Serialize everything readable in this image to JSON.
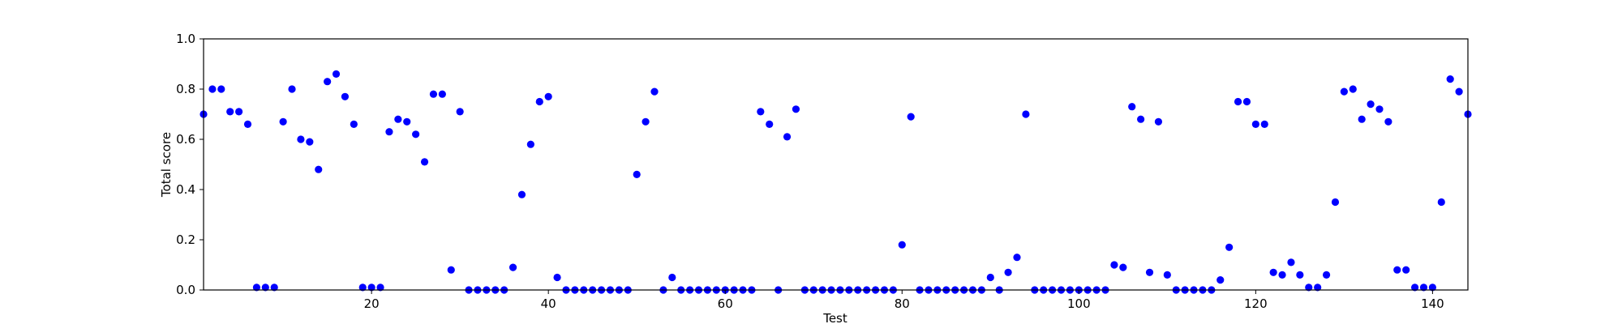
{
  "chart_data": {
    "type": "scatter",
    "title": "",
    "xlabel": "Test",
    "ylabel": "Total score",
    "xlim": [
      1,
      144
    ],
    "ylim": [
      0.0,
      1.0
    ],
    "xticks": [
      20,
      40,
      60,
      80,
      100,
      120,
      140
    ],
    "xtick_labels": [
      "20",
      "40",
      "60",
      "80",
      "100",
      "120",
      "140"
    ],
    "yticks": [
      0.0,
      0.2,
      0.4,
      0.6,
      0.8,
      1.0
    ],
    "ytick_labels": [
      "0.0",
      "0.2",
      "0.4",
      "0.6",
      "0.8",
      "1.0"
    ],
    "grid": false,
    "marker_color": "#0000ff",
    "series": [
      {
        "x": [
          1,
          2,
          3,
          4,
          5,
          6,
          7,
          8,
          9,
          10,
          11,
          12,
          13,
          14,
          15,
          16,
          17,
          18,
          19,
          20,
          21,
          22,
          23,
          24,
          25,
          26,
          27,
          28,
          29,
          30,
          31,
          32,
          33,
          34,
          35,
          36,
          37,
          38,
          39,
          40,
          41,
          42,
          43,
          44,
          45,
          46,
          47,
          48,
          49,
          50,
          51,
          52,
          53,
          54,
          55,
          56,
          57,
          58,
          59,
          60,
          61,
          62,
          63,
          64,
          65,
          66,
          67,
          68,
          69,
          70,
          71,
          72,
          73,
          74,
          75,
          76,
          77,
          78,
          79,
          80,
          81,
          82,
          83,
          84,
          85,
          86,
          87,
          88,
          89,
          90,
          91,
          92,
          93,
          94,
          95,
          96,
          97,
          98,
          99,
          100,
          101,
          102,
          103,
          104,
          105,
          106,
          107,
          108,
          109,
          110,
          111,
          112,
          113,
          114,
          115,
          116,
          117,
          118,
          119,
          120,
          121,
          122,
          123,
          124,
          125,
          126,
          127,
          128,
          129,
          130,
          131,
          132,
          133,
          134,
          135,
          136,
          137,
          138,
          139,
          140,
          141,
          142,
          143,
          144
        ],
        "y": [
          0.7,
          0.8,
          0.8,
          0.71,
          0.71,
          0.66,
          0.01,
          0.01,
          0.01,
          0.67,
          0.8,
          0.6,
          0.59,
          0.48,
          0.83,
          0.86,
          0.77,
          0.66,
          0.01,
          0.01,
          0.01,
          0.63,
          0.68,
          0.67,
          0.62,
          0.51,
          0.78,
          0.78,
          0.08,
          0.71,
          0.0,
          0.0,
          0.0,
          0.0,
          0.0,
          0.09,
          0.38,
          0.58,
          0.75,
          0.77,
          0.05,
          0.0,
          0.0,
          0.0,
          0.0,
          0.0,
          0.0,
          0.0,
          0.0,
          0.46,
          0.67,
          0.79,
          0.0,
          0.05,
          0.0,
          0.0,
          0.0,
          0.0,
          0.0,
          0.0,
          0.0,
          0.0,
          0.0,
          0.71,
          0.66,
          0.0,
          0.61,
          0.72,
          0.0,
          0.0,
          0.0,
          0.0,
          0.0,
          0.0,
          0.0,
          0.0,
          0.0,
          0.0,
          0.0,
          0.18,
          0.69,
          0.0,
          0.0,
          0.0,
          0.0,
          0.0,
          0.0,
          0.0,
          0.0,
          0.05,
          0.0,
          0.07,
          0.13,
          0.7,
          0.0,
          0.0,
          0.0,
          0.0,
          0.0,
          0.0,
          0.0,
          0.0,
          0.0,
          0.1,
          0.09,
          0.73,
          0.68,
          0.07,
          0.67,
          0.06,
          0.0,
          0.0,
          0.0,
          0.0,
          0.0,
          0.04,
          0.17,
          0.75,
          0.75,
          0.66,
          0.66,
          0.07,
          0.06,
          0.11,
          0.06,
          0.01,
          0.01,
          0.06,
          0.35,
          0.79,
          0.8,
          0.68,
          0.74,
          0.72,
          0.67,
          0.08,
          0.08,
          0.01,
          0.01,
          0.01,
          0.35,
          0.84,
          0.79,
          0.7
        ]
      }
    ]
  }
}
